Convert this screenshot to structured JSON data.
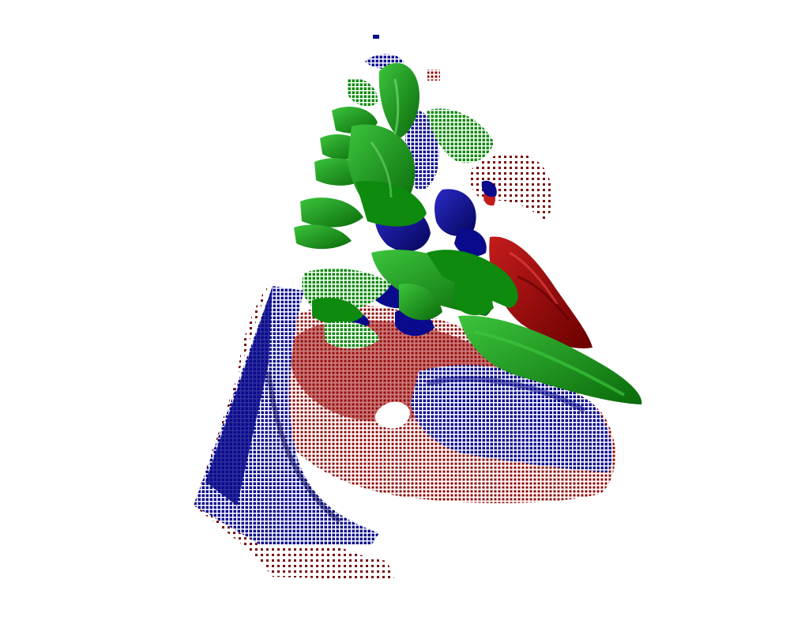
{
  "scene": {
    "background": "#ffffff",
    "colors": {
      "red": "#8b0000",
      "red_light": "#c41c1c",
      "blue": "#0a0a8c",
      "blue_light": "#2a2ac8",
      "green": "#0e8a0e",
      "green_light": "#3cc43c"
    },
    "layers": [
      {
        "name": "red-surface",
        "color": "red"
      },
      {
        "name": "blue-surface",
        "color": "blue"
      },
      {
        "name": "green-surface",
        "color": "green"
      }
    ]
  }
}
